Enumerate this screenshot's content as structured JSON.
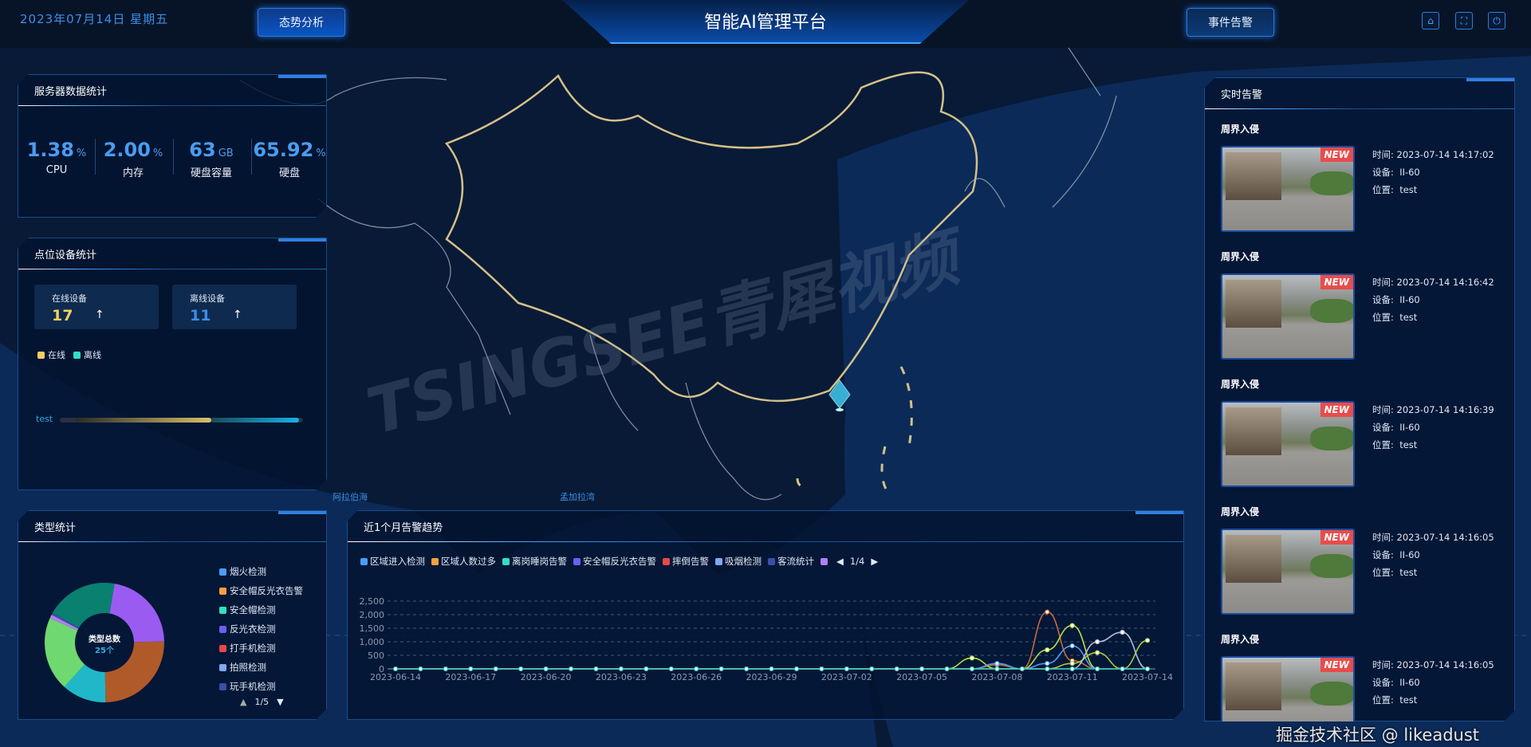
{
  "header": {
    "date": "2023年07月14日  星期五",
    "title": "智能AI管理平台",
    "left_button": "态势分析",
    "right_button": "事件告警",
    "icons": [
      "home-icon",
      "fullscreen-icon",
      "power-icon"
    ]
  },
  "map": {
    "labels": [
      "阿拉伯海",
      "孟加拉湾"
    ],
    "watermark": "TSINGSEE青犀视频",
    "marker_icon": "location-diamond-icon"
  },
  "server_stats": {
    "title": "服务器数据统计",
    "items": [
      {
        "value": "1.38",
        "unit": "%",
        "label": "CPU"
      },
      {
        "value": "2.00",
        "unit": "%",
        "label": "内存"
      },
      {
        "value": "63",
        "unit": "GB",
        "label": "硬盘容量"
      },
      {
        "value": "65.92",
        "unit": "%",
        "label": "硬盘"
      }
    ]
  },
  "device_stats": {
    "title": "点位设备统计",
    "online": {
      "label": "在线设备",
      "value": "17",
      "arrow": "↑"
    },
    "offline": {
      "label": "离线设备",
      "value": "11",
      "arrow": "↑"
    },
    "legend": [
      "在线",
      "离线"
    ],
    "bar": {
      "label": "test",
      "online": 17,
      "offline": 11
    },
    "colors": {
      "online": "#f0d060",
      "offline": "#2ee0c8"
    }
  },
  "type_stats": {
    "title": "类型统计",
    "center_label": "类型总数",
    "center_value": "25个",
    "legend": [
      {
        "name": "烟火检测",
        "color": "#4a9cf8"
      },
      {
        "name": "安全帽反光衣告警",
        "color": "#f8a040"
      },
      {
        "name": "安全帽检测",
        "color": "#30e0c0"
      },
      {
        "name": "反光衣检测",
        "color": "#6a60f0"
      },
      {
        "name": "打手机检测",
        "color": "#e84848"
      },
      {
        "name": "拍照检测",
        "color": "#80a8f0"
      },
      {
        "name": "玩手机检测",
        "color": "#3c4ea8"
      }
    ],
    "pager": "1/5",
    "slices": [
      {
        "color": "#9a5cf0",
        "value": 22
      },
      {
        "color": "#b05a2a",
        "value": 25
      },
      {
        "color": "#20b8c8",
        "value": 12
      },
      {
        "color": "#70d870",
        "value": 20
      },
      {
        "color": "#b080f0",
        "value": 1
      },
      {
        "color": "#3c4ea8",
        "value": 0.6
      },
      {
        "color": "#0a8070",
        "value": 19.4
      }
    ]
  },
  "trend": {
    "title": "近1个月告警趋势",
    "pager": "1/4",
    "legend": [
      {
        "name": "区域进入检测",
        "color": "#4a9cf8"
      },
      {
        "name": "区域人数过多",
        "color": "#f8a040"
      },
      {
        "name": "离岗睡岗告警",
        "color": "#30e0c0"
      },
      {
        "name": "安全帽反光衣告警",
        "color": "#6a60f0"
      },
      {
        "name": "摔倒告警",
        "color": "#e84848"
      },
      {
        "name": "吸烟检测",
        "color": "#80a8f0"
      },
      {
        "name": "客流统计",
        "color": "#3c4ea8"
      },
      {
        "name": "",
        "color": "#b080f0"
      }
    ]
  },
  "chart_data": {
    "type": "line",
    "xlabel": "",
    "ylabel": "",
    "ylim": [
      0,
      2500
    ],
    "yticks": [
      "0",
      "500",
      "1,000",
      "1,500",
      "2,000",
      "2,500"
    ],
    "x": [
      "2023-06-14",
      "2023-06-15",
      "2023-06-16",
      "2023-06-17",
      "2023-06-18",
      "2023-06-19",
      "2023-06-20",
      "2023-06-21",
      "2023-06-22",
      "2023-06-23",
      "2023-06-24",
      "2023-06-25",
      "2023-06-26",
      "2023-06-27",
      "2023-06-28",
      "2023-06-29",
      "2023-06-30",
      "2023-07-01",
      "2023-07-02",
      "2023-07-03",
      "2023-07-04",
      "2023-07-05",
      "2023-07-06",
      "2023-07-07",
      "2023-07-08",
      "2023-07-09",
      "2023-07-10",
      "2023-07-11",
      "2023-07-12",
      "2023-07-13",
      "2023-07-14"
    ],
    "xticks": [
      "2023-06-14",
      "2023-06-17",
      "2023-06-20",
      "2023-06-23",
      "2023-06-26",
      "2023-06-29",
      "2023-07-02",
      "2023-07-05",
      "2023-07-08",
      "2023-07-11",
      "2023-07-14"
    ],
    "grid": true,
    "series": [
      {
        "color": "#c86a38",
        "values": [
          0,
          0,
          0,
          0,
          0,
          0,
          0,
          0,
          0,
          0,
          0,
          0,
          0,
          0,
          0,
          0,
          0,
          0,
          0,
          0,
          0,
          0,
          0,
          0,
          150,
          0,
          2100,
          300,
          0,
          0,
          0
        ]
      },
      {
        "color": "#b8e040",
        "values": [
          0,
          0,
          0,
          0,
          0,
          0,
          0,
          0,
          0,
          0,
          0,
          0,
          0,
          0,
          0,
          0,
          0,
          0,
          0,
          0,
          0,
          0,
          0,
          400,
          0,
          0,
          700,
          1600,
          0,
          0,
          0
        ]
      },
      {
        "color": "#4a9cf8",
        "values": [
          0,
          0,
          0,
          0,
          0,
          0,
          0,
          0,
          0,
          0,
          0,
          0,
          0,
          0,
          0,
          0,
          0,
          0,
          0,
          0,
          0,
          0,
          0,
          0,
          200,
          0,
          200,
          850,
          0,
          0,
          0
        ]
      },
      {
        "color": "#a8c840",
        "values": [
          0,
          0,
          0,
          0,
          0,
          0,
          0,
          0,
          0,
          0,
          0,
          0,
          0,
          0,
          0,
          0,
          0,
          0,
          0,
          0,
          0,
          0,
          0,
          0,
          0,
          0,
          0,
          200,
          600,
          0,
          1050
        ]
      },
      {
        "color": "#b0c0d8",
        "values": [
          0,
          0,
          0,
          0,
          0,
          0,
          0,
          0,
          0,
          0,
          0,
          0,
          0,
          0,
          0,
          0,
          0,
          0,
          0,
          0,
          0,
          0,
          0,
          0,
          0,
          0,
          0,
          0,
          1000,
          1350,
          0
        ]
      },
      {
        "name": "离岗睡岗告警",
        "color": "#30c0b0",
        "values": [
          0,
          0,
          0,
          0,
          0,
          0,
          0,
          0,
          0,
          0,
          0,
          0,
          0,
          0,
          0,
          0,
          0,
          0,
          0,
          0,
          0,
          0,
          0,
          0,
          0,
          0,
          0,
          0,
          0,
          0,
          0
        ]
      }
    ]
  },
  "alerts": {
    "title": "实时告警",
    "items": [
      {
        "type": "周界入侵",
        "badge": "NEW",
        "time_label": "时间:",
        "time": "2023-07-14 14:17:02",
        "device_label": "设备:",
        "device": "II-60",
        "location_label": "位置:",
        "location": "test"
      },
      {
        "type": "周界入侵",
        "badge": "NEW",
        "time_label": "时间:",
        "time": "2023-07-14 14:16:42",
        "device_label": "设备:",
        "device": "II-60",
        "location_label": "位置:",
        "location": "test"
      },
      {
        "type": "周界入侵",
        "badge": "NEW",
        "time_label": "时间:",
        "time": "2023-07-14 14:16:39",
        "device_label": "设备:",
        "device": "II-60",
        "location_label": "位置:",
        "location": "test"
      },
      {
        "type": "周界入侵",
        "badge": "NEW",
        "time_label": "时间:",
        "time": "2023-07-14 14:16:05",
        "device_label": "设备:",
        "device": "II-60",
        "location_label": "位置:",
        "location": "test"
      },
      {
        "type": "周界入侵",
        "badge": "NEW",
        "time_label": "时间:",
        "time": "2023-07-14 14:16:05",
        "device_label": "设备:",
        "device": "II-60",
        "location_label": "位置:",
        "location": "test"
      }
    ]
  },
  "footer_watermark": "掘金技术社区 @ likeadust"
}
